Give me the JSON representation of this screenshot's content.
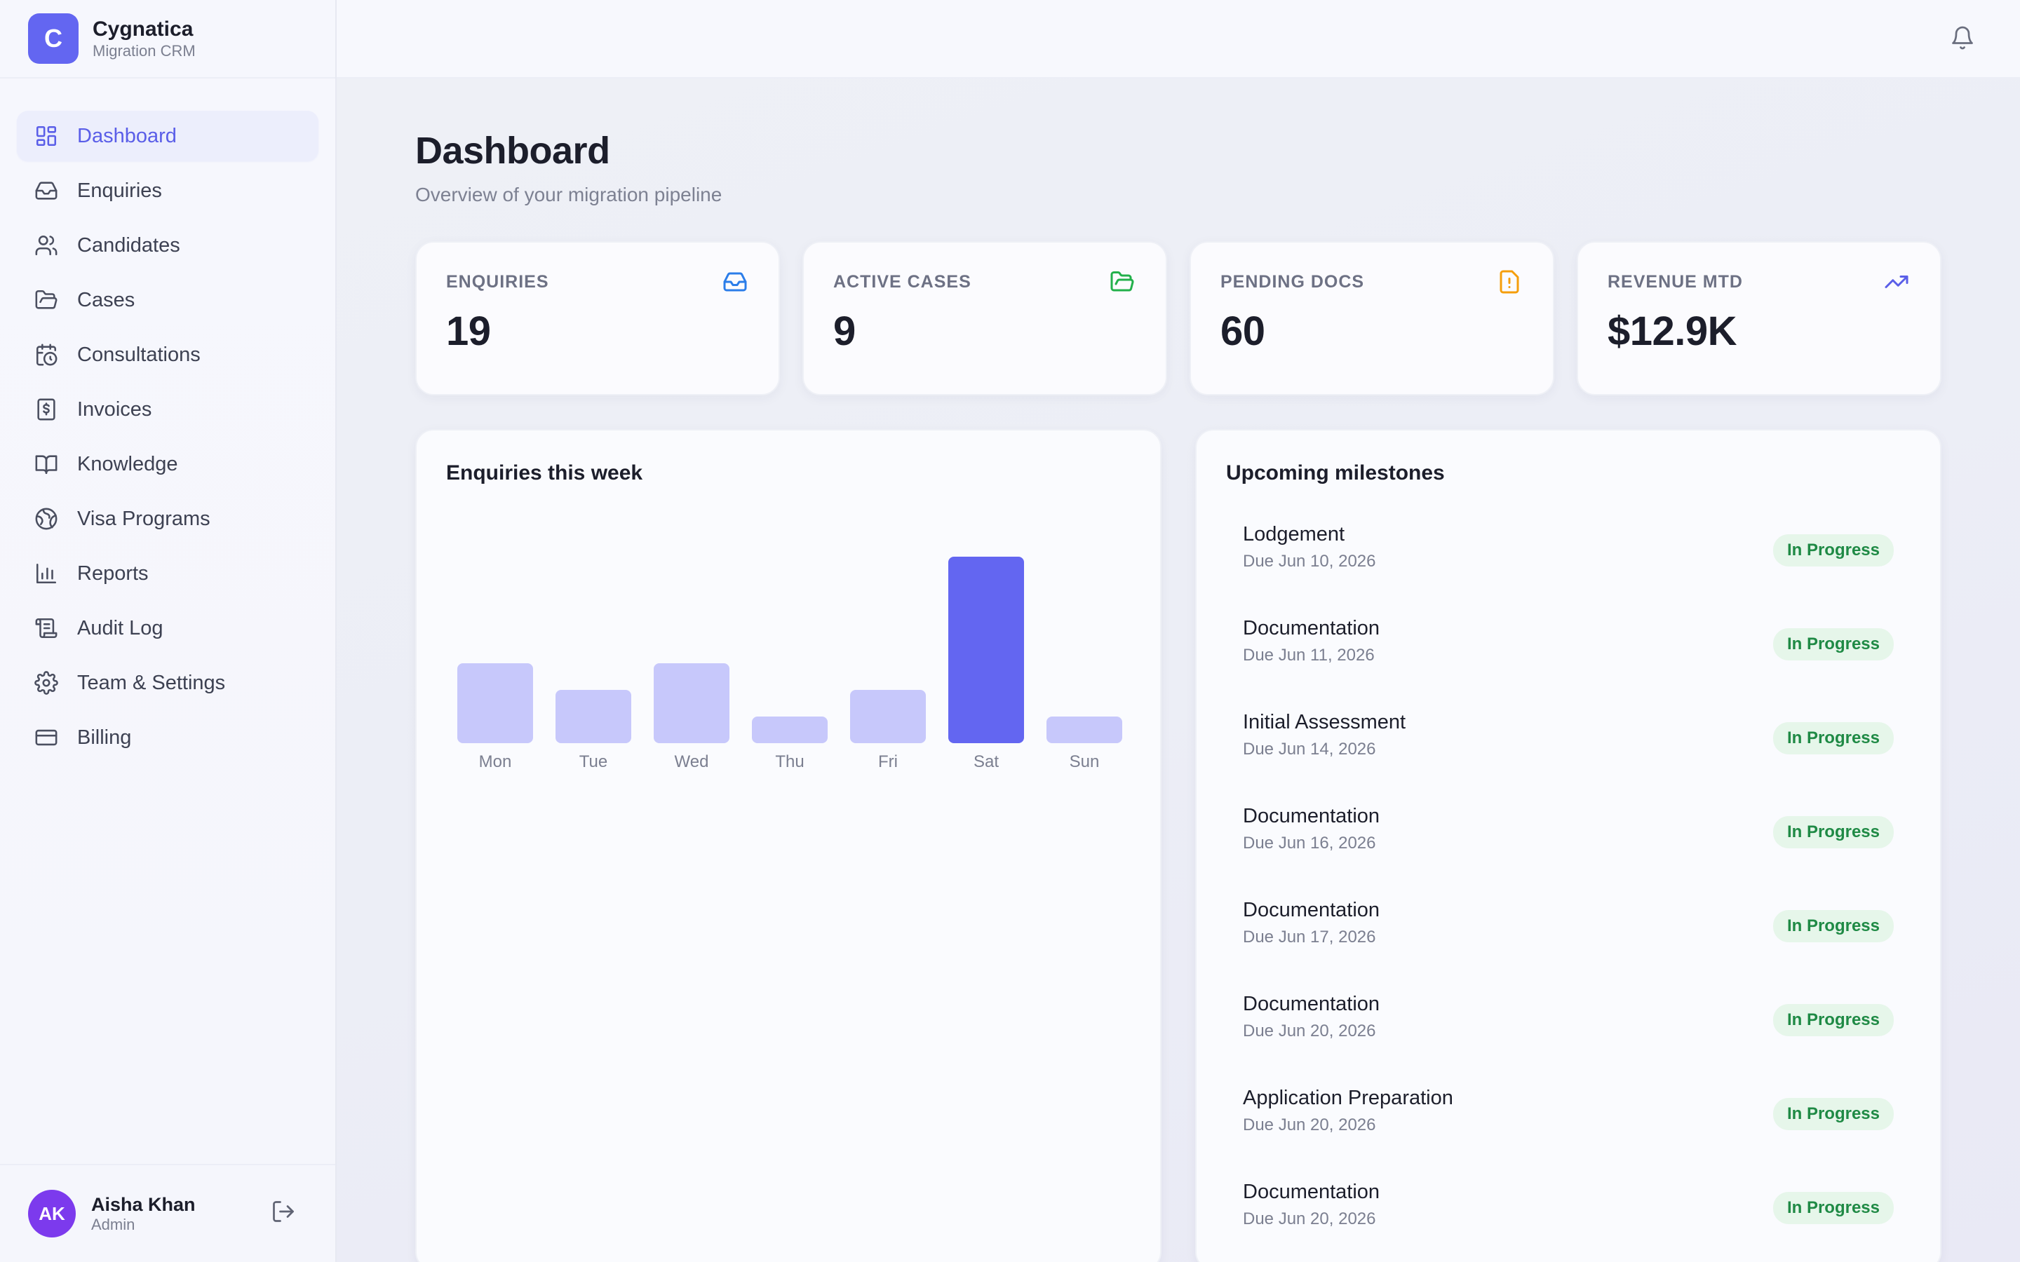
{
  "brand": {
    "logo_letter": "C",
    "name": "Cygnatica",
    "subtitle": "Migration CRM"
  },
  "nav": [
    {
      "label": "Dashboard",
      "icon": "grid-icon",
      "active": true
    },
    {
      "label": "Enquiries",
      "icon": "inbox-icon"
    },
    {
      "label": "Candidates",
      "icon": "users-icon"
    },
    {
      "label": "Cases",
      "icon": "folder-icon"
    },
    {
      "label": "Consultations",
      "icon": "calendar-clock-icon"
    },
    {
      "label": "Invoices",
      "icon": "dollar-receipt-icon"
    },
    {
      "label": "Knowledge",
      "icon": "book-icon"
    },
    {
      "label": "Visa Programs",
      "icon": "globe-icon"
    },
    {
      "label": "Reports",
      "icon": "bar-chart-icon"
    },
    {
      "label": "Audit Log",
      "icon": "scroll-icon"
    },
    {
      "label": "Team & Settings",
      "icon": "gear-icon"
    },
    {
      "label": "Billing",
      "icon": "credit-card-icon"
    }
  ],
  "user": {
    "initials": "AK",
    "name": "Aisha Khan",
    "role": "Admin"
  },
  "page": {
    "title": "Dashboard",
    "subtitle": "Overview of your migration pipeline"
  },
  "stats": [
    {
      "label": "ENQUIRIES",
      "value": "19",
      "icon": "inbox-icon",
      "color": "#2b7de9"
    },
    {
      "label": "ACTIVE CASES",
      "value": "9",
      "icon": "folder-open-icon",
      "color": "#22b04b"
    },
    {
      "label": "PENDING DOCS",
      "value": "60",
      "icon": "file-alert-icon",
      "color": "#f59e0b"
    },
    {
      "label": "REVENUE MTD",
      "value": "$12.9K",
      "icon": "trending-up-icon",
      "color": "#5a5ee8"
    }
  ],
  "chart_panel": {
    "title": "Enquiries this week"
  },
  "chart_data": {
    "type": "bar",
    "categories": [
      "Mon",
      "Tue",
      "Wed",
      "Thu",
      "Fri",
      "Sat",
      "Sun"
    ],
    "values": [
      3,
      2,
      3,
      1,
      2,
      7,
      1
    ],
    "highlight_index": 5,
    "colors": {
      "bar": "#c7c8fb",
      "highlight": "#6366f1"
    },
    "ylim": [
      0,
      7
    ],
    "grid": false
  },
  "milestones_panel": {
    "title": "Upcoming milestones"
  },
  "milestones": [
    {
      "title": "Lodgement",
      "due": "Due Jun 10, 2026",
      "status": "In Progress"
    },
    {
      "title": "Documentation",
      "due": "Due Jun 11, 2026",
      "status": "In Progress"
    },
    {
      "title": "Initial Assessment",
      "due": "Due Jun 14, 2026",
      "status": "In Progress"
    },
    {
      "title": "Documentation",
      "due": "Due Jun 16, 2026",
      "status": "In Progress"
    },
    {
      "title": "Documentation",
      "due": "Due Jun 17, 2026",
      "status": "In Progress"
    },
    {
      "title": "Documentation",
      "due": "Due Jun 20, 2026",
      "status": "In Progress"
    },
    {
      "title": "Application Preparation",
      "due": "Due Jun 20, 2026",
      "status": "In Progress"
    },
    {
      "title": "Documentation",
      "due": "Due Jun 20, 2026",
      "status": "In Progress"
    }
  ]
}
